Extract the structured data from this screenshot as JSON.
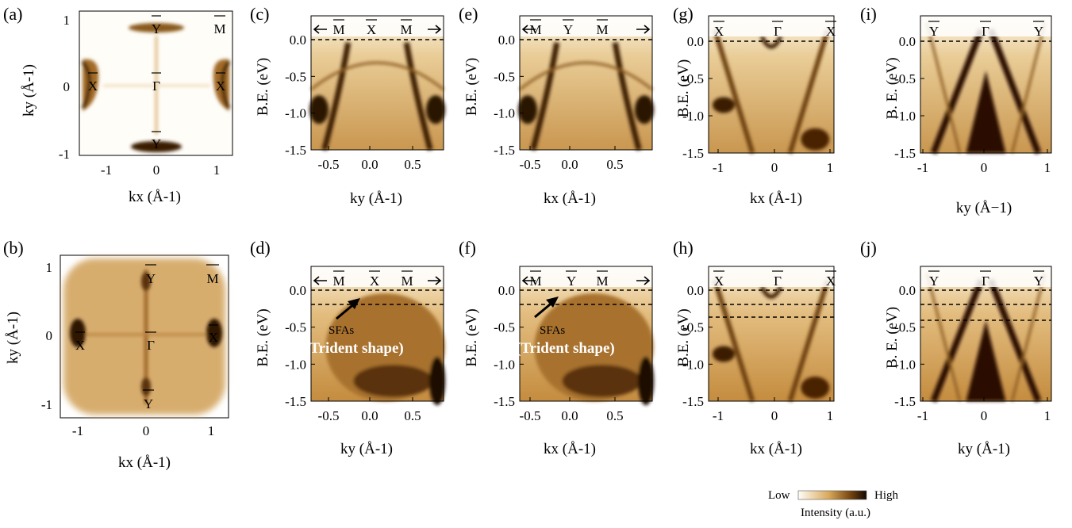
{
  "panels": [
    {
      "label": "(a)",
      "x_label": "kx (Å-1)",
      "y_label": "ky (Å-1)",
      "x_ticks": [
        "-1",
        "0",
        "1"
      ],
      "y_ticks": [
        "1",
        "0",
        "-1"
      ],
      "points": [
        "Y",
        "M",
        "X",
        "Γ",
        "X",
        "Y"
      ]
    },
    {
      "label": "(b)",
      "x_label": "kx (Å-1)",
      "y_label": "ky (Å-1)",
      "x_ticks": [
        "-1",
        "0",
        "1"
      ],
      "y_ticks": [
        "1",
        "0",
        "-1"
      ],
      "points": [
        "Y",
        "M",
        "X",
        "Γ",
        "X",
        "Y"
      ]
    },
    {
      "label": "(c)",
      "x_label": "ky (Å-1)",
      "y_label": "B.E. (eV)",
      "x_ticks": [
        "-0.5",
        "0.0",
        "0.5"
      ],
      "y_ticks": [
        "0.0",
        "-0.5",
        "-1.0",
        "-1.5"
      ],
      "hs_points": [
        "M",
        "X",
        "M"
      ]
    },
    {
      "label": "(d)",
      "x_label": "ky (Å-1)",
      "y_label": "B.E. (eV)",
      "x_ticks": [
        "-0.5",
        "0.0",
        "0.5"
      ],
      "y_ticks": [
        "0.0",
        "-0.5",
        "-1.0",
        "-1.5"
      ],
      "hs_points": [
        "M",
        "X",
        "M"
      ],
      "annot1": "SFAs",
      "annot2": "(Trident shape)"
    },
    {
      "label": "(e)",
      "x_label": "kx (Å-1)",
      "y_label": "B.E. (eV)",
      "x_ticks": [
        "-0.5",
        "0.0",
        "0.5"
      ],
      "y_ticks": [
        "0.0",
        "-0.5",
        "-1.0",
        "-1.5"
      ],
      "hs_points": [
        "M",
        "Y",
        "M"
      ]
    },
    {
      "label": "(f)",
      "x_label": "kx (Å-1)",
      "y_label": "B.E. (eV)",
      "x_ticks": [
        "-0.5",
        "0.0",
        "0.5"
      ],
      "y_ticks": [
        "0.0",
        "-0.5",
        "-1.0",
        "-1.5"
      ],
      "hs_points": [
        "M",
        "Y",
        "M"
      ],
      "annot1": "SFAs",
      "annot2": "(Trident shape)"
    },
    {
      "label": "(g)",
      "x_label": "kx (Å-1)",
      "y_label": "B.E. (eV)",
      "x_ticks": [
        "-1",
        "0",
        "1"
      ],
      "y_ticks": [
        "0.0",
        "-0.5",
        "-1.0",
        "-1.5"
      ],
      "hs_points": [
        "X",
        "Γ",
        "X"
      ]
    },
    {
      "label": "(h)",
      "x_label": "kx (Å-1)",
      "y_label": "B.E. (eV)",
      "x_ticks": [
        "-1",
        "0",
        "1"
      ],
      "y_ticks": [
        "0.0",
        "-0.5",
        "-1.0",
        "-1.5"
      ],
      "hs_points": [
        "X",
        "Γ",
        "X"
      ]
    },
    {
      "label": "(i)",
      "x_label": "ky (Å−1)",
      "y_label": "B. E. (eV)",
      "x_ticks": [
        "-1",
        "0",
        "1"
      ],
      "y_ticks": [
        "0.0",
        "-0.5",
        "-1.0",
        "-1.5"
      ],
      "hs_points": [
        "Y",
        "Γ",
        "Y"
      ]
    },
    {
      "label": "(j)",
      "x_label": "ky (Å-1)",
      "y_label": "B. E. (eV)",
      "x_ticks": [
        "-1",
        "0",
        "1"
      ],
      "y_ticks": [
        "0.0",
        "-0.5",
        "-1.0",
        "-1.5"
      ],
      "hs_points": [
        "Y",
        "Γ",
        "Y"
      ]
    }
  ],
  "legend": {
    "low": "Low",
    "high": "High",
    "caption": "Intensity (a.u.)"
  },
  "colors": {
    "low": "#fffaf0",
    "mid": "#c8964a",
    "high": "#1a0a00"
  }
}
